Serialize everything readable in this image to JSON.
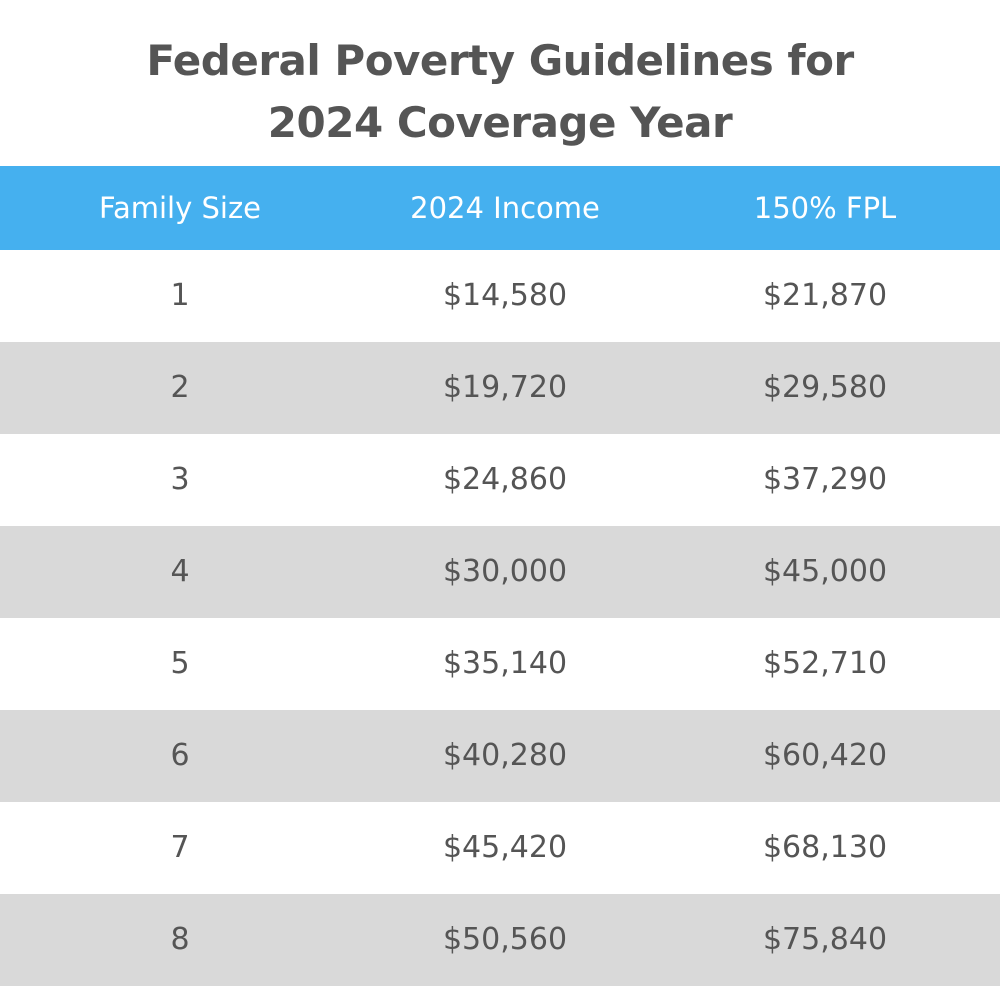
{
  "title": {
    "line1": "Federal Poverty Guidelines for",
    "line2": "2024 Coverage Year"
  },
  "colors": {
    "header_bg": "#45b0ef",
    "header_text": "#ffffff",
    "shaded_row": "#d9d9d9",
    "text": "#555555"
  },
  "table": {
    "headers": [
      "Family Size",
      "2024 Income",
      "150% FPL"
    ],
    "rows": [
      [
        "1",
        "$14,580",
        "$21,870"
      ],
      [
        "2",
        "$19,720",
        "$29,580"
      ],
      [
        "3",
        "$24,860",
        "$37,290"
      ],
      [
        "4",
        "$30,000",
        "$45,000"
      ],
      [
        "5",
        "$35,140",
        "$52,710"
      ],
      [
        "6",
        "$40,280",
        "$60,420"
      ],
      [
        "7",
        "$45,420",
        "$68,130"
      ],
      [
        "8",
        "$50,560",
        "$75,840"
      ]
    ]
  }
}
